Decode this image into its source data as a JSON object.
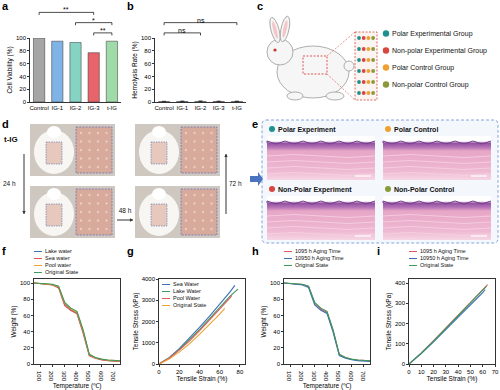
{
  "chart_data": [
    {
      "panel": "a",
      "type": "bar",
      "categories": [
        "Control",
        "IG-1",
        "IG-2",
        "IG-3",
        "t-IG"
      ],
      "values": [
        100,
        95,
        93,
        77,
        95
      ],
      "colors": [
        "#a5a5a5",
        "#7fb3e6",
        "#86d3c3",
        "#e8646b",
        "#9fdaa9"
      ],
      "y_label": "Cell Viability (%)",
      "ylim": [
        0,
        100
      ],
      "yticks": [
        0,
        20,
        40,
        60,
        80,
        100
      ],
      "grid": false,
      "significance": [
        {
          "from": "IG-3",
          "to": "t-IG",
          "label": "**"
        },
        {
          "from": "IG-2",
          "to": "t-IG",
          "label": "*"
        },
        {
          "from": "Control",
          "to": "IG-3",
          "label": "**"
        }
      ]
    },
    {
      "panel": "b",
      "type": "bar",
      "categories": [
        "Control",
        "IG-1",
        "IG-2",
        "IG-3",
        "t-IG"
      ],
      "values": [
        0.6,
        0.8,
        0.9,
        0.7,
        0.8
      ],
      "errors": [
        0.5,
        0.6,
        0.7,
        0.6,
        0.5
      ],
      "colors": [
        "#a5a5a5",
        "#7fb3e6",
        "#86d3c3",
        "#e8646b",
        "#9fdaa9"
      ],
      "y_label": "Hemolysis Rate (%)",
      "ylim": [
        0,
        100
      ],
      "yticks": [
        0,
        20,
        40,
        60,
        80,
        100
      ],
      "grid": false,
      "significance": [
        {
          "from": "Control",
          "to": "IG-2",
          "label": "ns"
        },
        {
          "from": "Control",
          "to": "t-IG",
          "label": "ns"
        }
      ]
    },
    {
      "panel": "f",
      "type": "line",
      "x_label": "Temperature (℃)",
      "y_label": "Weight (%)",
      "x": [
        50,
        100,
        150,
        200,
        250,
        300,
        350,
        400,
        450,
        500,
        550,
        600,
        650,
        700,
        750
      ],
      "series": [
        {
          "name": "Lake water",
          "color": "#3b6fb6",
          "values": [
            100,
            99.5,
            99.0,
            98.0,
            95.0,
            74,
            67,
            63,
            40,
            11,
            7.5,
            5.5,
            4.5,
            4.0,
            3.5
          ]
        },
        {
          "name": "Sea water",
          "color": "#d9534f",
          "values": [
            100,
            99.4,
            98.8,
            97.5,
            94.0,
            72,
            66,
            62,
            38,
            10,
            7.0,
            5.0,
            4.0,
            3.5,
            3.0
          ]
        },
        {
          "name": "Pool water",
          "color": "#f0a030",
          "values": [
            100,
            99.5,
            99.0,
            98.2,
            95.5,
            75,
            68,
            64,
            41,
            11.5,
            7.8,
            5.8,
            4.8,
            4.2,
            3.8
          ]
        },
        {
          "name": "Original State",
          "color": "#3a9a5b",
          "values": [
            100,
            99.6,
            99.2,
            98.5,
            96.0,
            76,
            69,
            65,
            42,
            12,
            8.0,
            6.0,
            5.0,
            4.5,
            4.0
          ]
        }
      ],
      "xlim": [
        50,
        750
      ],
      "xticks": [
        100,
        200,
        300,
        400,
        500,
        600,
        700
      ],
      "ylim": [
        0,
        105
      ],
      "yticks": [
        0,
        20,
        40,
        60,
        80,
        100
      ],
      "legend": "top",
      "grid": false
    },
    {
      "panel": "g",
      "type": "line",
      "x_label": "Tensile Strain (%)",
      "y_label": "Tensile Stress (kPa)",
      "series": [
        {
          "name": "Sea Water",
          "color": "#3b6fb6",
          "x": [
            0,
            10,
            20,
            30,
            40,
            50,
            60,
            70,
            75
          ],
          "values": [
            0,
            300,
            720,
            1200,
            1720,
            2250,
            2800,
            3380,
            3700
          ]
        },
        {
          "name": "Lake Water",
          "color": "#3a9a5b",
          "x": [
            0,
            10,
            20,
            30,
            40,
            50,
            60,
            70,
            78
          ],
          "values": [
            0,
            280,
            680,
            1130,
            1620,
            2130,
            2650,
            3180,
            3520
          ]
        },
        {
          "name": "Pool Water",
          "color": "#e05a5a",
          "x": [
            0,
            10,
            20,
            30,
            40,
            50,
            60,
            70,
            72
          ],
          "values": [
            0,
            270,
            650,
            1080,
            1560,
            2060,
            2580,
            3100,
            3230
          ]
        },
        {
          "name": "Original State",
          "color": "#f0a030",
          "x": [
            0,
            10,
            20,
            30,
            40,
            50,
            60,
            65
          ],
          "values": [
            0,
            230,
            560,
            950,
            1390,
            1860,
            2350,
            2620
          ]
        }
      ],
      "xlim": [
        0,
        85
      ],
      "xticks": [
        0,
        20,
        40,
        60,
        80
      ],
      "ylim": [
        0,
        4000
      ],
      "yticks": [
        0,
        1000,
        2000,
        3000,
        4000
      ],
      "legend": "upper left",
      "grid": false
    },
    {
      "panel": "h",
      "type": "line",
      "x_label": "Temperature (℃)",
      "y_label": "Weight (%)",
      "x": [
        50,
        100,
        150,
        200,
        250,
        300,
        350,
        400,
        450,
        500,
        550,
        600,
        650,
        700,
        750
      ],
      "series": [
        {
          "name": "1095 h Aging Time",
          "color": "#e05a5a",
          "values": [
            100,
            99.5,
            99.1,
            98.3,
            95.8,
            75,
            68,
            64,
            41,
            11.8,
            7.9,
            5.9,
            4.9,
            4.3,
            3.9
          ]
        },
        {
          "name": "10950 h Aging Time",
          "color": "#3b6fb6",
          "values": [
            100,
            99.3,
            98.7,
            97.6,
            94.5,
            73,
            66.5,
            62.5,
            39,
            10.5,
            7.2,
            5.2,
            4.2,
            3.7,
            3.2
          ]
        },
        {
          "name": "Original State",
          "color": "#3a9a5b",
          "values": [
            100,
            99.6,
            99.2,
            98.5,
            96.0,
            76,
            69,
            65,
            42,
            12,
            8.0,
            6.0,
            5.0,
            4.5,
            4.0
          ]
        }
      ],
      "xlim": [
        50,
        750
      ],
      "xticks": [
        100,
        200,
        300,
        400,
        500,
        600,
        700
      ],
      "ylim": [
        0,
        105
      ],
      "yticks": [
        0,
        20,
        40,
        60,
        80,
        100
      ],
      "legend": "top",
      "grid": false
    },
    {
      "panel": "i",
      "type": "line",
      "x_label": "Tensile Strain (%)",
      "y_label": "Tensile Stress (kPa)",
      "series": [
        {
          "name": "1095 h Aging Time",
          "color": "#e05a5a",
          "x": [
            0,
            10,
            20,
            30,
            40,
            50,
            60,
            64
          ],
          "values": [
            0,
            55,
            115,
            178,
            242,
            305,
            368,
            392
          ]
        },
        {
          "name": "10950 h Aging Time",
          "color": "#3b6fb6",
          "x": [
            0,
            10,
            20,
            30,
            40,
            50,
            60,
            62
          ],
          "values": [
            0,
            52,
            110,
            170,
            232,
            292,
            352,
            368
          ]
        },
        {
          "name": "Original State",
          "color": "#3a9a5b",
          "x": [
            0,
            10,
            20,
            30,
            40,
            50,
            60,
            63
          ],
          "values": [
            0,
            54,
            113,
            175,
            238,
            300,
            362,
            383
          ]
        }
      ],
      "xlim": [
        0,
        70
      ],
      "xticks": [
        0,
        10,
        20,
        30,
        40,
        50,
        60,
        70
      ],
      "ylim": [
        0,
        420
      ],
      "yticks": [
        0,
        100,
        200,
        300,
        400
      ],
      "legend": "top",
      "grid": false
    }
  ],
  "diagram": {
    "panel": "c",
    "groups": [
      {
        "label": "Polar Experimental Group",
        "color": "#1f8f8f"
      },
      {
        "label": "Non-polar Experimental Group",
        "color": "#d9463f"
      },
      {
        "label": "Polar Control Group",
        "color": "#f0a030"
      },
      {
        "label": "Non-polar Control Group",
        "color": "#8a9a3a"
      }
    ]
  },
  "photos": {
    "panel": "d",
    "sample": "t-IG",
    "intervals": [
      "24 h",
      "48 h",
      "72 h"
    ]
  },
  "histology": {
    "panel": "e",
    "sections": [
      {
        "label": "Polar Experiment",
        "color": "#1f8f8f"
      },
      {
        "label": "Polar Control",
        "color": "#f0a030"
      },
      {
        "label": "Non-Polar Experiment",
        "color": "#d9463f"
      },
      {
        "label": "Non-Polar Control",
        "color": "#8a9a3a"
      }
    ]
  }
}
